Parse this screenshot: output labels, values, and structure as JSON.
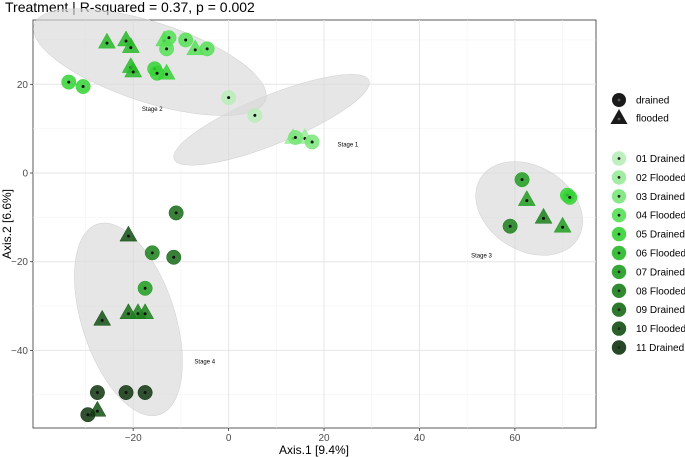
{
  "chart_data": {
    "type": "scatter",
    "title": "Treatment | R-squared = 0.37, p = 0.002",
    "xlabel": "Axis.1   [9.4%]",
    "ylabel": "Axis.2   [6.6%]",
    "xlim": [
      -41,
      77
    ],
    "ylim": [
      -57.5,
      34.5
    ],
    "xticks": [
      -20,
      0,
      20,
      40,
      60
    ],
    "yticks": [
      -40,
      -20,
      0,
      20
    ],
    "grid": true,
    "legend_position": "right",
    "shape_legend": [
      {
        "label": "drained",
        "shape": "circle"
      },
      {
        "label": "flooded",
        "shape": "triangle"
      }
    ],
    "groups": [
      {
        "label": "01 Drained",
        "color": "#b8edb8"
      },
      {
        "label": "02 Flooded",
        "color": "#99ea99"
      },
      {
        "label": "03 Drained",
        "color": "#79e579"
      },
      {
        "label": "04 Flooded",
        "color": "#55e055"
      },
      {
        "label": "05 Drained",
        "color": "#34d234"
      },
      {
        "label": "06 Flooded",
        "color": "#27b827"
      },
      {
        "label": "07 Drained",
        "color": "#209c20"
      },
      {
        "label": "08 Flooded",
        "color": "#1b801b"
      },
      {
        "label": "09 Drained",
        "color": "#176a17"
      },
      {
        "label": "10 Flooded",
        "color": "#124f12"
      },
      {
        "label": "11 Drained",
        "color": "#0e340e"
      }
    ],
    "ellipses": [
      {
        "label": "Stage 1",
        "cx": 9,
        "cy": 12,
        "rx": 22,
        "ry": 5.5,
        "angle": -22,
        "label_at": [
          25,
          6
        ]
      },
      {
        "label": "Stage 2",
        "cx": -16.5,
        "cy": 25,
        "rx": 25.5,
        "ry": 9,
        "angle": 18,
        "label_at": [
          -16,
          14
        ]
      },
      {
        "label": "Stage 3",
        "cx": 63,
        "cy": -8,
        "rx": 12,
        "ry": 9.5,
        "angle": 32,
        "label_at": [
          53,
          -19
        ]
      },
      {
        "label": "Stage 4",
        "cx": -21,
        "cy": -33,
        "rx": 21,
        "ry": 10.5,
        "angle": 72,
        "label_at": [
          -5,
          -43
        ]
      }
    ],
    "points": [
      {
        "x": 0,
        "y": 17,
        "group": 0,
        "shape": "circle"
      },
      {
        "x": 5.5,
        "y": 13,
        "group": 0,
        "shape": "circle"
      },
      {
        "x": 13.5,
        "y": 8,
        "group": 1,
        "shape": "triangle"
      },
      {
        "x": 16,
        "y": 8,
        "group": 1,
        "shape": "triangle"
      },
      {
        "x": 14,
        "y": 8,
        "group": 2,
        "shape": "circle"
      },
      {
        "x": 17.5,
        "y": 7,
        "group": 2,
        "shape": "circle"
      },
      {
        "x": -33.5,
        "y": 20.5,
        "group": 4,
        "shape": "circle"
      },
      {
        "x": -30.5,
        "y": 19.5,
        "group": 4,
        "shape": "circle"
      },
      {
        "x": -25.5,
        "y": 29.5,
        "group": 5,
        "shape": "triangle"
      },
      {
        "x": -21.5,
        "y": 30,
        "group": 5,
        "shape": "triangle"
      },
      {
        "x": -20.5,
        "y": 28.5,
        "group": 5,
        "shape": "triangle"
      },
      {
        "x": -20.5,
        "y": 24,
        "group": 5,
        "shape": "triangle"
      },
      {
        "x": -20,
        "y": 23,
        "group": 5,
        "shape": "triangle"
      },
      {
        "x": -13.5,
        "y": 30,
        "group": 3,
        "shape": "triangle"
      },
      {
        "x": -13,
        "y": 28,
        "group": 3,
        "shape": "circle"
      },
      {
        "x": -12.5,
        "y": 30.5,
        "group": 3,
        "shape": "circle"
      },
      {
        "x": -9,
        "y": 30,
        "group": 3,
        "shape": "circle"
      },
      {
        "x": -7,
        "y": 28,
        "group": 3,
        "shape": "triangle"
      },
      {
        "x": -4.5,
        "y": 28,
        "group": 3,
        "shape": "circle"
      },
      {
        "x": -15.5,
        "y": 23.5,
        "group": 4,
        "shape": "circle"
      },
      {
        "x": -15,
        "y": 22.5,
        "group": 4,
        "shape": "circle"
      },
      {
        "x": -13,
        "y": 22.5,
        "group": 4,
        "shape": "triangle"
      },
      {
        "x": 61.5,
        "y": -1.5,
        "group": 6,
        "shape": "circle"
      },
      {
        "x": 62.5,
        "y": -6,
        "group": 6,
        "shape": "triangle"
      },
      {
        "x": 59,
        "y": -12,
        "group": 7,
        "shape": "circle"
      },
      {
        "x": 66,
        "y": -10,
        "group": 7,
        "shape": "triangle"
      },
      {
        "x": 70,
        "y": -12,
        "group": 6,
        "shape": "triangle"
      },
      {
        "x": 71,
        "y": -5,
        "group": 4,
        "shape": "circle"
      },
      {
        "x": 71.5,
        "y": -5.5,
        "group": 4,
        "shape": "circle"
      },
      {
        "x": -11,
        "y": -9,
        "group": 8,
        "shape": "circle"
      },
      {
        "x": -21,
        "y": -14,
        "group": 9,
        "shape": "triangle"
      },
      {
        "x": -16,
        "y": -18,
        "group": 7,
        "shape": "circle"
      },
      {
        "x": -11.5,
        "y": -19,
        "group": 8,
        "shape": "circle"
      },
      {
        "x": -17.5,
        "y": -26,
        "group": 6,
        "shape": "circle"
      },
      {
        "x": -21,
        "y": -31.5,
        "group": 8,
        "shape": "triangle"
      },
      {
        "x": -19,
        "y": -31.5,
        "group": 7,
        "shape": "triangle"
      },
      {
        "x": -17.5,
        "y": -31.5,
        "group": 7,
        "shape": "triangle"
      },
      {
        "x": -26.5,
        "y": -33,
        "group": 9,
        "shape": "triangle"
      },
      {
        "x": -27.5,
        "y": -49.5,
        "group": 10,
        "shape": "circle"
      },
      {
        "x": -21.5,
        "y": -49.5,
        "group": 10,
        "shape": "circle"
      },
      {
        "x": -17.5,
        "y": -49.5,
        "group": 10,
        "shape": "circle"
      },
      {
        "x": -27.5,
        "y": -53.5,
        "group": 9,
        "shape": "triangle"
      },
      {
        "x": -29.5,
        "y": -54.5,
        "group": 10,
        "shape": "circle"
      }
    ]
  }
}
